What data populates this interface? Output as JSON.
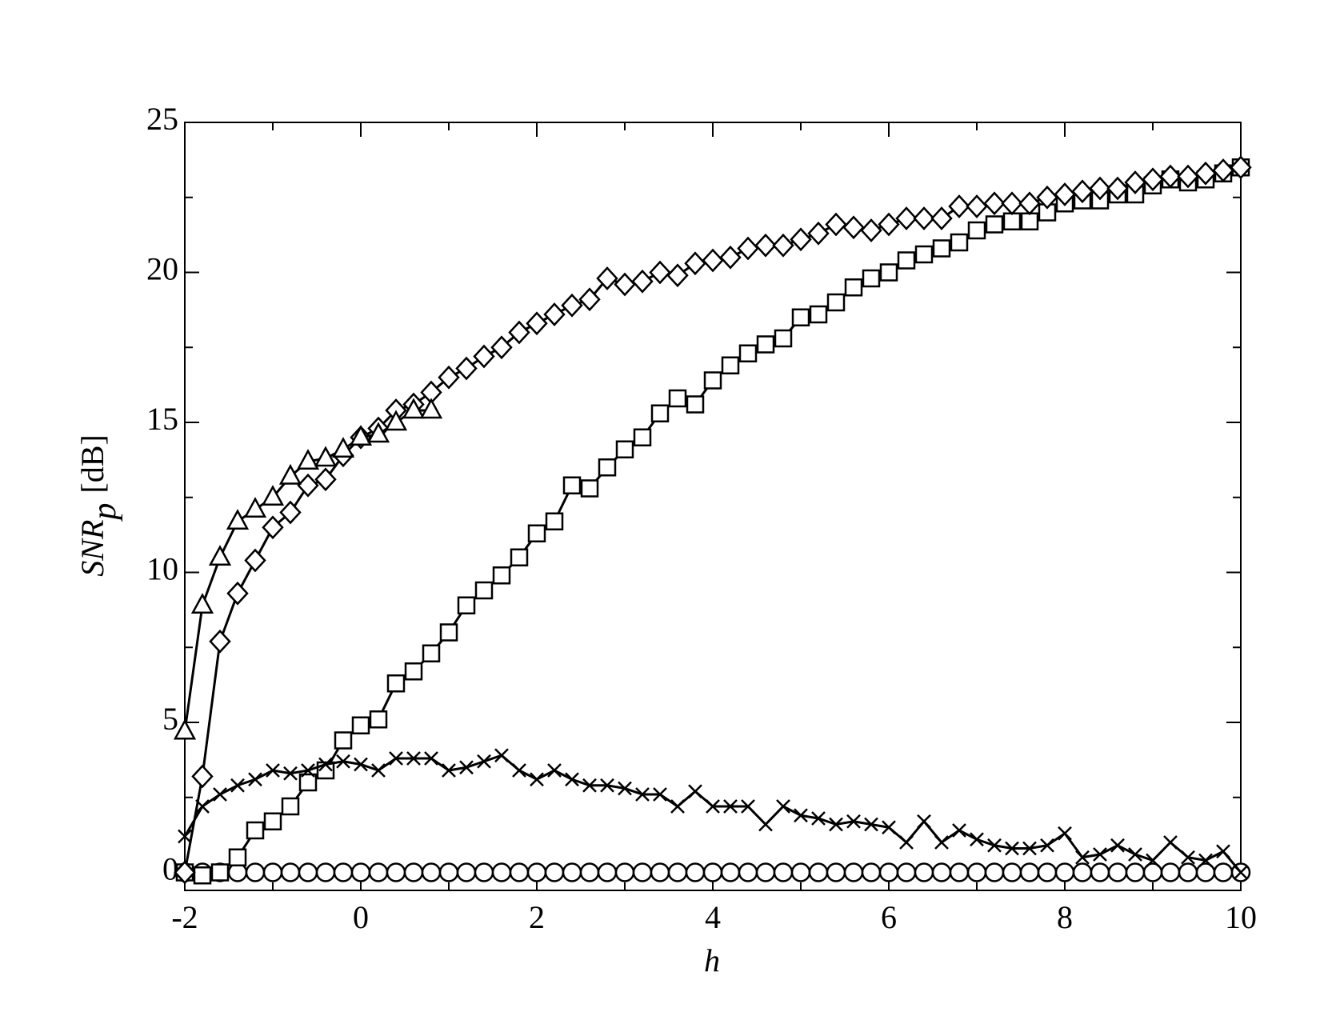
{
  "chart_data": {
    "type": "line",
    "xlabel": "h",
    "ylabel": {
      "text": "SNR",
      "subscript": "p",
      "unit": "[dB]"
    },
    "x": [
      -2,
      -1.8,
      -1.6,
      -1.4,
      -1.2,
      -1,
      -0.8,
      -0.6,
      -0.4,
      -0.2,
      0,
      0.2,
      0.4,
      0.6,
      0.8,
      1,
      1.2,
      1.4,
      1.6,
      1.8,
      2,
      2.2,
      2.4,
      2.6,
      2.8,
      3,
      3.2,
      3.4,
      3.6,
      3.8,
      4,
      4.2,
      4.4,
      4.6,
      4.8,
      5,
      5.2,
      5.4,
      5.6,
      5.8,
      6,
      6.2,
      6.4,
      6.6,
      6.8,
      7,
      7.2,
      7.4,
      7.6,
      7.8,
      8,
      8.2,
      8.4,
      8.6,
      8.8,
      9,
      9.2,
      9.4,
      9.6,
      9.8,
      10
    ],
    "series": [
      {
        "marker": "circle",
        "color": "#000000",
        "values": [
          0,
          0,
          0,
          0,
          0,
          0,
          0,
          0,
          0,
          0,
          0,
          0,
          0,
          0,
          0,
          0,
          0,
          0,
          0,
          0,
          0,
          0,
          0,
          0,
          0,
          0,
          0,
          0,
          0,
          0,
          0,
          0,
          0,
          0,
          0,
          0,
          0,
          0,
          0,
          0,
          0,
          0,
          0,
          0,
          0,
          0,
          0,
          0,
          0,
          0,
          0,
          0,
          0,
          0,
          0,
          0,
          0,
          0,
          0,
          0,
          0
        ]
      },
      {
        "marker": "square",
        "color": "#000000",
        "values": [
          0,
          -0.1,
          0,
          0.5,
          1.4,
          1.7,
          2.2,
          3.0,
          3.4,
          4.4,
          4.9,
          5.1,
          6.3,
          6.7,
          7.3,
          8.0,
          8.9,
          9.4,
          9.9,
          10.5,
          11.3,
          11.7,
          12.9,
          12.8,
          13.5,
          14.1,
          14.5,
          15.3,
          15.8,
          15.6,
          16.4,
          16.9,
          17.3,
          17.6,
          17.8,
          18.5,
          18.6,
          19.0,
          19.5,
          19.8,
          20.0,
          20.4,
          20.6,
          20.8,
          21.0,
          21.4,
          21.6,
          21.7,
          21.7,
          22.0,
          22.3,
          22.4,
          22.4,
          22.6,
          22.6,
          22.9,
          23.1,
          23.0,
          23.1,
          23.3,
          23.5
        ]
      },
      {
        "marker": "diamond",
        "color": "#000000",
        "values": [
          0,
          3.2,
          7.7,
          9.3,
          10.4,
          11.5,
          12.0,
          12.9,
          13.1,
          13.9,
          14.5,
          14.8,
          15.4,
          15.6,
          16.0,
          16.5,
          16.8,
          17.2,
          17.5,
          18.0,
          18.3,
          18.6,
          18.9,
          19.1,
          19.8,
          19.6,
          19.7,
          20.0,
          19.9,
          20.3,
          20.4,
          20.5,
          20.8,
          20.9,
          20.9,
          21.1,
          21.3,
          21.6,
          21.5,
          21.4,
          21.6,
          21.8,
          21.8,
          21.8,
          22.2,
          22.2,
          22.3,
          22.3,
          22.3,
          22.5,
          22.6,
          22.7,
          22.8,
          22.8,
          23.0,
          23.1,
          23.2,
          23.2,
          23.3,
          23.4,
          23.5
        ]
      },
      {
        "marker": "triangle",
        "color": "#000000",
        "values": [
          4.7,
          8.9,
          10.5,
          11.7,
          12.1,
          12.5,
          13.2,
          13.7,
          13.8,
          14.1,
          14.5,
          14.6,
          15.0,
          15.4,
          15.4,
          null,
          null,
          null,
          null,
          null,
          null,
          null,
          null,
          null,
          null,
          null,
          null,
          null,
          null,
          null,
          null,
          null,
          null,
          null,
          null,
          null,
          null,
          null,
          null,
          null,
          null,
          null,
          null,
          null,
          null,
          null,
          null,
          null,
          null,
          null,
          null,
          null,
          null,
          null,
          null,
          null,
          null,
          null,
          null,
          null,
          null
        ]
      },
      {
        "marker": "cross",
        "color": "#000000",
        "values": [
          1.2,
          2.2,
          2.6,
          2.9,
          3.1,
          3.4,
          3.3,
          3.4,
          3.6,
          3.7,
          3.6,
          3.4,
          3.8,
          3.8,
          3.8,
          3.4,
          3.5,
          3.7,
          3.9,
          3.4,
          3.1,
          3.4,
          3.1,
          2.9,
          2.9,
          2.8,
          2.6,
          2.6,
          2.2,
          2.7,
          2.2,
          2.2,
          2.2,
          1.6,
          2.2,
          1.9,
          1.8,
          1.6,
          1.7,
          1.6,
          1.5,
          1.0,
          1.7,
          1.0,
          1.4,
          1.1,
          0.9,
          0.8,
          0.8,
          0.9,
          1.3,
          0.5,
          0.6,
          0.9,
          0.6,
          0.4,
          1.0,
          0.5,
          0.4,
          0.7,
          0
        ]
      }
    ],
    "xlim": [
      -2,
      10
    ],
    "xticks": [
      -2,
      0,
      2,
      4,
      6,
      8,
      10
    ],
    "xminorticks": [
      -1,
      1,
      3,
      5,
      7,
      9
    ],
    "ylim": [
      -0.6,
      25
    ],
    "yticks": [
      0,
      5,
      10,
      15,
      20,
      25
    ],
    "yminorticks": [
      2.5,
      7.5,
      12.5,
      17.5,
      22.5
    ],
    "grid": false
  }
}
